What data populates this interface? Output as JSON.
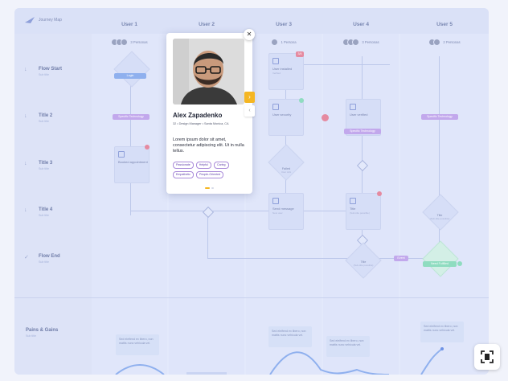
{
  "app": {
    "title": "Journey Map"
  },
  "users": [
    {
      "label": "User 1",
      "persona": "3 Personas"
    },
    {
      "label": "User 2",
      "persona": ""
    },
    {
      "label": "User 3",
      "persona": "1 Persona"
    },
    {
      "label": "User 4",
      "persona": "3 Personas"
    },
    {
      "label": "User 5",
      "persona": "2 Personas"
    }
  ],
  "rows": [
    {
      "title": "Flow Start",
      "sub": "Sub title",
      "icon": "arrow-down-icon"
    },
    {
      "title": "Title 2",
      "sub": "Sub title",
      "icon": "arrow-down-icon"
    },
    {
      "title": "Title 3",
      "sub": "Sub title",
      "icon": "arrow-down-icon"
    },
    {
      "title": "Title 4",
      "sub": "Sub title",
      "icon": "arrow-down-icon"
    },
    {
      "title": "Flow End",
      "sub": "Sub title",
      "icon": "check-icon"
    }
  ],
  "pains": {
    "title": "Pains & Gains",
    "sub": "Sub title"
  },
  "nodes": {
    "login": "Login",
    "specific1": "Specific Technology",
    "booked": "Booked appointment",
    "user_installed": "User installed",
    "user_installed_sub": "Verified",
    "user_security": "User security",
    "failed": "Failed",
    "failed_sub": "User sick",
    "send_message": "Send message",
    "send_message_sub": "New user",
    "user_verified": "User verified",
    "specific2": "Specific Technology",
    "title_node": "Title",
    "title_node_sub": "(Sub-title possible)",
    "title_node2": "Title",
    "title_node2_sub": "(Sub-title possible)",
    "specific3": "Specific Technology",
    "title5": "Title",
    "title5_sub": "(Sub-title possible)",
    "event": "Event",
    "need_fulfilled": "Need Fulfilled",
    "badge_count": "3/4"
  },
  "quotes": [
    "Sed eleifend ex libero, non mattis nunc vehicula vel.",
    "Sed eleifend ex libero, non mattis nunc vehicula vel.",
    "Sed eleifend ex libero, non mattis nunc vehicula vel.",
    "Sed eleifend ex libero, non mattis nunc vehicula vel."
  ],
  "popup": {
    "name": "Alex Zapadenko",
    "role": "32 • Design Manager • Santa Monica, CA",
    "bio": "Lorem ipsum dolor sit amet, consectetur adipiscing elit. Ut in nulla tellus.",
    "traits": [
      "Passionate",
      "Helpful",
      "Caring",
      "Empathetic",
      "People-Oriented"
    ],
    "close_icon": "close-icon",
    "next_icon": "chevron-right-icon",
    "prev_icon": "chevron-left-icon"
  },
  "colors": {
    "accent": "#f5b622",
    "purple": "#c2a8ec",
    "blue": "#8fb0ee",
    "green": "#8fdcc0",
    "red": "#e58aa0"
  }
}
